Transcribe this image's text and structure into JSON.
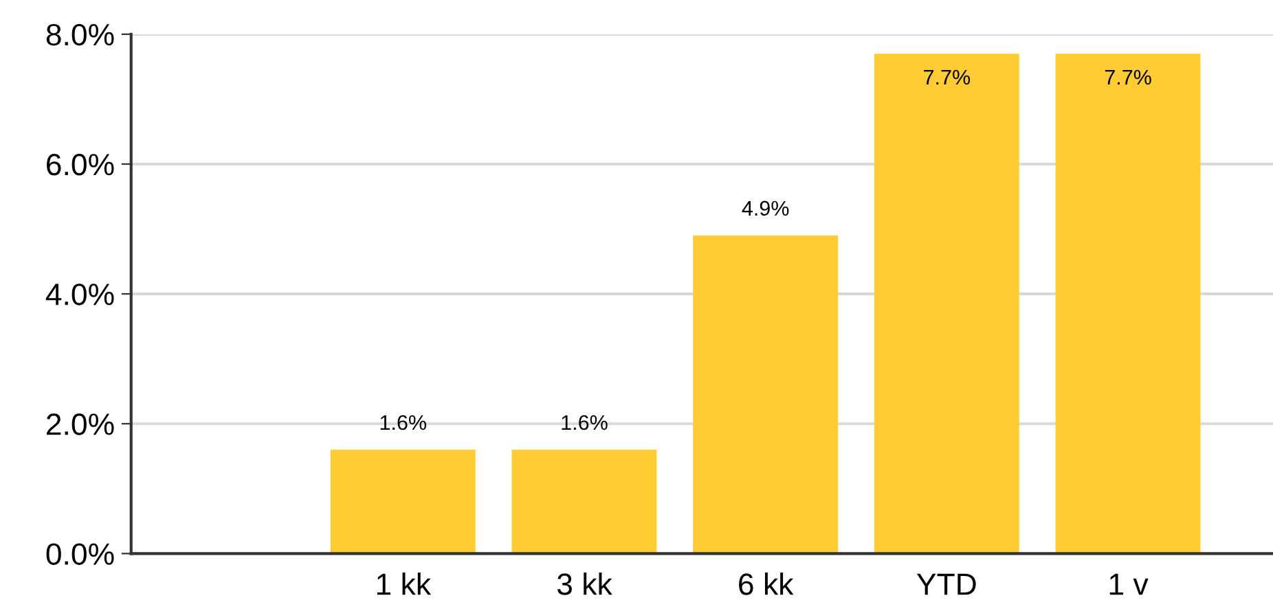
{
  "chart_data": {
    "type": "bar",
    "categories": [
      null,
      "1 kk",
      "3 kk",
      "6 kk",
      "YTD",
      "1 v"
    ],
    "values": [
      null,
      1.6,
      1.6,
      4.9,
      7.7,
      7.7
    ],
    "value_labels": [
      null,
      "1.6%",
      "1.6%",
      "4.9%",
      "7.7%",
      "7.7%"
    ],
    "color": "#ffcd33",
    "ylim": [
      0,
      8
    ],
    "yticks": [
      {
        "value": 0,
        "label": "0.0%"
      },
      {
        "value": 2,
        "label": "2.0%"
      },
      {
        "value": 4,
        "label": "4.0%"
      },
      {
        "value": 6,
        "label": "6.0%"
      },
      {
        "value": 8,
        "label": "8.0%"
      }
    ],
    "grid": "y",
    "legend": false
  }
}
